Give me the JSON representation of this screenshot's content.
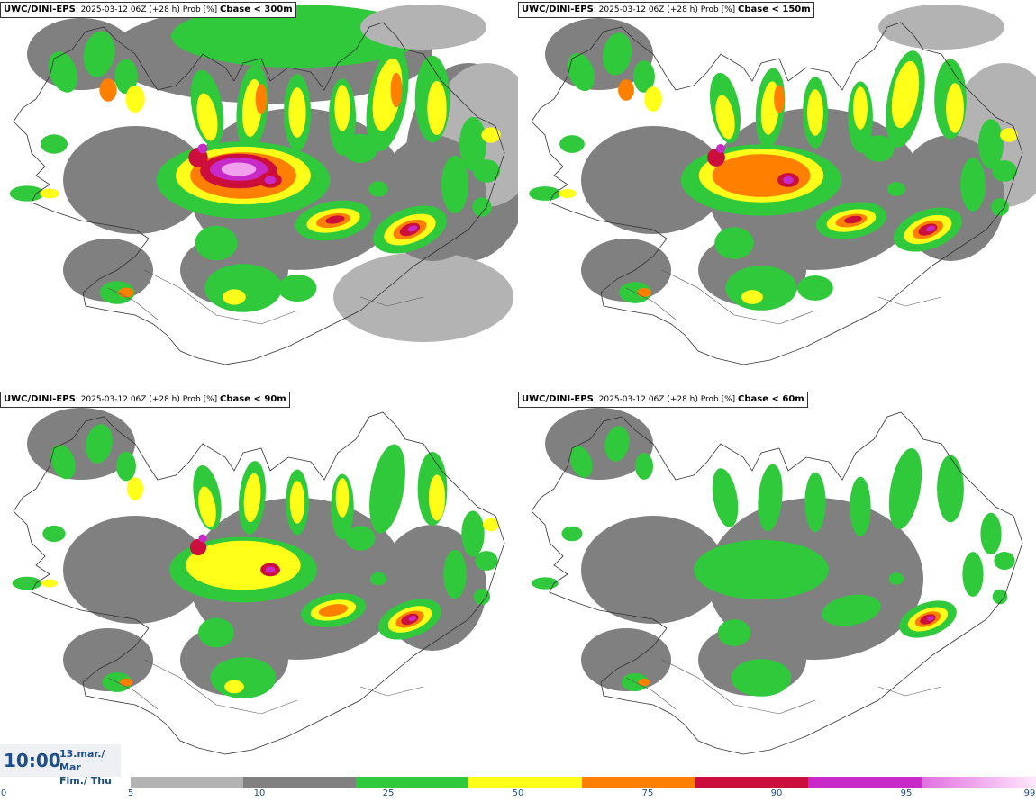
{
  "panels": [
    {
      "model": "UWC/DINI-EPS",
      "info": ": 2025-03-12 06Z (+28 h) Prob [%]",
      "param": "Cbase < 300m"
    },
    {
      "model": "UWC/DINI-EPS",
      "info": ": 2025-03-12 06Z (+28 h) Prob [%]",
      "param": "Cbase < 150m"
    },
    {
      "model": "UWC/DINI-EPS",
      "info": ": 2025-03-12 06Z (+28 h) Prob [%]",
      "param": "Cbase < 90m"
    },
    {
      "model": "UWC/DINI-EPS",
      "info": ": 2025-03-12 06Z (+28 h) Prob [%]",
      "param": "Cbase < 60m"
    }
  ],
  "valid_time": {
    "time": "10:00",
    "date_line1": "13.mar./ Mar",
    "date_line2": "Fim./ Thu"
  },
  "legend": {
    "ticks": [
      "0",
      "5",
      "10",
      "25",
      "50",
      "75",
      "90",
      "95",
      "99"
    ],
    "colors": [
      "#b3b3b3",
      "#808080",
      "#2fc93b",
      "#ffff1a",
      "#ff7f00",
      "#cc0e3c",
      "#c82ac7",
      "#ffd6f6"
    ]
  },
  "map_colors": {
    "light_gray": "#b3b3b3",
    "dark_gray": "#808080",
    "green": "#2fc93b",
    "yellow": "#ffff1a",
    "orange": "#ff7f00",
    "red": "#cc0e3c",
    "magenta": "#c82ac7",
    "pink": "#f0a0ec"
  }
}
